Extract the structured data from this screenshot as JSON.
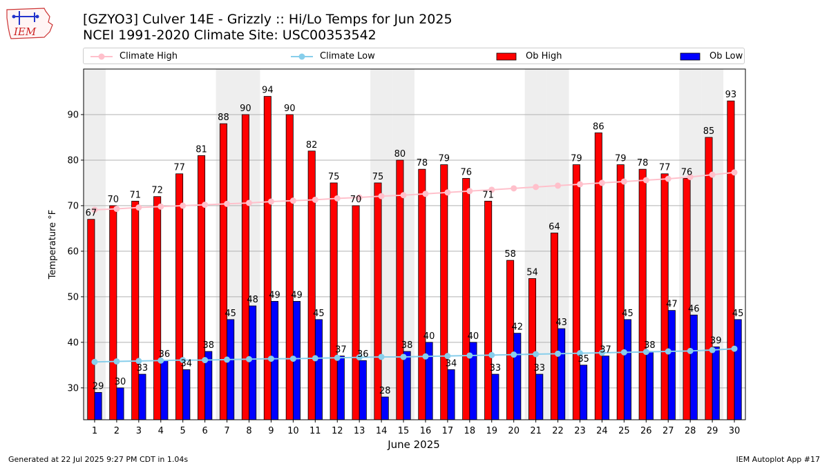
{
  "header": {
    "title_line1": "[GZYO3] Culver 14E - Grizzly :: Hi/Lo Temps for Jun 2025",
    "title_line2": "NCEI 1991-2020 Climate Site: USC00353542",
    "logo_text": "IEM"
  },
  "legend": {
    "climate_high": "Climate High",
    "climate_low": "Climate Low",
    "ob_high": "Ob High",
    "ob_low": "Ob Low"
  },
  "footer": {
    "generated": "Generated at 22 Jul 2025 9:27 PM CDT in 1.04s",
    "app": "IEM Autoplot App #17"
  },
  "colors": {
    "ob_high": "#ff0000",
    "ob_low": "#0000ff",
    "climate_high": "#ffc0cb",
    "climate_low": "#87ceeb",
    "weekend_band": "#eeeeee",
    "grid": "#b0b0b0"
  },
  "chart_data": {
    "type": "bar",
    "xlabel": "June 2025",
    "ylabel": "Temperature °F",
    "ylim": [
      23,
      100
    ],
    "yticks": [
      30,
      40,
      50,
      60,
      70,
      80,
      90
    ],
    "grid": "horizontal",
    "legend_position": "top",
    "categories": [
      "1",
      "2",
      "3",
      "4",
      "5",
      "6",
      "7",
      "8",
      "9",
      "10",
      "11",
      "12",
      "13",
      "14",
      "15",
      "16",
      "17",
      "18",
      "19",
      "20",
      "21",
      "22",
      "23",
      "24",
      "25",
      "26",
      "27",
      "28",
      "29",
      "30"
    ],
    "shaded_days": [
      1,
      7,
      8,
      14,
      15,
      21,
      22,
      28,
      29
    ],
    "series": [
      {
        "name": "Ob High",
        "kind": "bar",
        "values": [
          67,
          70,
          71,
          72,
          77,
          81,
          88,
          90,
          94,
          90,
          82,
          75,
          70,
          75,
          80,
          78,
          79,
          76,
          71,
          58,
          54,
          64,
          79,
          86,
          79,
          78,
          77,
          76,
          85,
          93
        ]
      },
      {
        "name": "Ob Low",
        "kind": "bar",
        "values": [
          29,
          30,
          33,
          36,
          34,
          38,
          45,
          48,
          49,
          49,
          45,
          37,
          36,
          28,
          38,
          40,
          34,
          40,
          33,
          42,
          33,
          43,
          35,
          37,
          45,
          38,
          47,
          46,
          39,
          45
        ]
      },
      {
        "name": "Climate High",
        "kind": "line",
        "values": [
          69.1,
          69.3,
          69.6,
          69.8,
          70.0,
          70.2,
          70.4,
          70.6,
          70.9,
          71.1,
          71.3,
          71.6,
          71.8,
          72.1,
          72.3,
          72.6,
          72.9,
          73.2,
          73.5,
          73.8,
          74.1,
          74.4,
          74.7,
          75.0,
          75.3,
          75.6,
          75.9,
          76.3,
          76.8,
          77.3
        ]
      },
      {
        "name": "Climate Low",
        "kind": "line",
        "values": [
          35.7,
          35.8,
          35.9,
          36.0,
          36.1,
          36.1,
          36.2,
          36.3,
          36.4,
          36.4,
          36.5,
          36.6,
          36.7,
          36.8,
          36.8,
          36.9,
          37.0,
          37.1,
          37.2,
          37.3,
          37.4,
          37.5,
          37.6,
          37.7,
          37.8,
          37.9,
          38.0,
          38.1,
          38.3,
          38.6
        ]
      }
    ]
  }
}
